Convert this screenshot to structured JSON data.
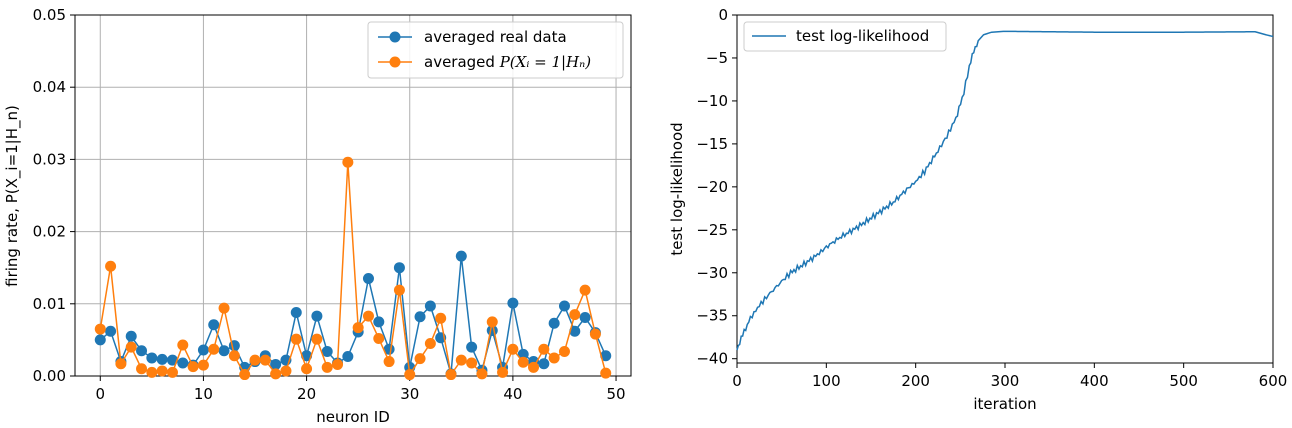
{
  "chart_data": [
    {
      "type": "line",
      "title": "",
      "xlabel": "neuron ID",
      "ylabel": "firing rate, P(X_i=1|H_n)",
      "xlim": [
        -2.45,
        51.45
      ],
      "ylim": [
        0,
        0.05
      ],
      "xticks": [
        "0",
        "10",
        "20",
        "30",
        "40",
        "50"
      ],
      "yticks": [
        "0.00",
        "0.01",
        "0.02",
        "0.03",
        "0.04",
        "0.05"
      ],
      "grid": true,
      "legend_position": "top-right",
      "x": [
        0,
        1,
        2,
        3,
        4,
        5,
        6,
        7,
        8,
        9,
        10,
        11,
        12,
        13,
        14,
        15,
        16,
        17,
        18,
        19,
        20,
        21,
        22,
        23,
        24,
        25,
        26,
        27,
        28,
        29,
        30,
        31,
        32,
        33,
        34,
        35,
        36,
        37,
        38,
        39,
        40,
        41,
        42,
        43,
        44,
        45,
        46,
        47,
        48,
        49
      ],
      "series": [
        {
          "name": "averaged real data",
          "color": "#1f77b4",
          "values": [
            0.005,
            0.0062,
            0.002,
            0.0055,
            0.0035,
            0.0025,
            0.0023,
            0.0022,
            0.0018,
            0.0015,
            0.0036,
            0.0071,
            0.0035,
            0.0042,
            0.0012,
            0.002,
            0.0028,
            0.0016,
            0.0022,
            0.0088,
            0.0028,
            0.0083,
            0.0034,
            0.0018,
            0.0027,
            0.0061,
            0.0135,
            0.0075,
            0.0037,
            0.015,
            0.0012,
            0.0082,
            0.0097,
            0.0053,
            0.0003,
            0.0166,
            0.004,
            0.0008,
            0.0063,
            0.0012,
            0.0101,
            0.003,
            0.002,
            0.0017,
            0.0073,
            0.0097,
            0.0062,
            0.0081,
            0.006,
            0.0028
          ]
        },
        {
          "name": "averaged ",
          "name_math": "P(Xᵢ = 1|Hₙ)",
          "color": "#ff7f0e",
          "values": [
            0.0065,
            0.0152,
            0.0017,
            0.004,
            0.001,
            0.0005,
            0.0007,
            0.0005,
            0.0043,
            0.0013,
            0.0015,
            0.0037,
            0.0094,
            0.0028,
            0.0002,
            0.0022,
            0.0022,
            0.0003,
            0.0007,
            0.0051,
            0.001,
            0.0051,
            0.0012,
            0.0016,
            0.0296,
            0.0067,
            0.0083,
            0.0052,
            0.002,
            0.0119,
            0.0002,
            0.0024,
            0.0045,
            0.008,
            0.0002,
            0.0022,
            0.0018,
            0.0003,
            0.0075,
            0.0005,
            0.0037,
            0.0019,
            0.0012,
            0.0037,
            0.0025,
            0.0034,
            0.0085,
            0.0119,
            0.0058,
            0.0004
          ]
        }
      ]
    },
    {
      "type": "line",
      "title": "",
      "xlabel": "iteration",
      "ylabel": "test log-likelihood",
      "xlim": [
        0,
        600
      ],
      "ylim": [
        -40.5,
        0
      ],
      "xticks": [
        "0",
        "100",
        "200",
        "300",
        "400",
        "500",
        "600"
      ],
      "yticks": [
        "0",
        "−5",
        "−10",
        "−15",
        "−20",
        "−25",
        "−30",
        "−35",
        "−40"
      ],
      "grid": false,
      "legend_position": "top-left",
      "series": [
        {
          "name": "test log-likelihood",
          "color": "#1f77b4",
          "points": [
            [
              0,
              -39
            ],
            [
              3,
              -38.2
            ],
            [
              8,
              -36.8
            ],
            [
              15,
              -35.3
            ],
            [
              25,
              -33.8
            ],
            [
              35,
              -32.6
            ],
            [
              50,
              -31.0
            ],
            [
              60,
              -30.0
            ],
            [
              75,
              -29.0
            ],
            [
              90,
              -27.9
            ],
            [
              100,
              -27.0
            ],
            [
              115,
              -25.9
            ],
            [
              130,
              -25.0
            ],
            [
              145,
              -24.0
            ],
            [
              160,
              -22.9
            ],
            [
              175,
              -21.8
            ],
            [
              190,
              -20.3
            ],
            [
              200,
              -19.4
            ],
            [
              210,
              -18.2
            ],
            [
              225,
              -15.8
            ],
            [
              235,
              -14.1
            ],
            [
              245,
              -12.0
            ],
            [
              252,
              -9.8
            ],
            [
              256,
              -8.0
            ],
            [
              260,
              -6.0
            ],
            [
              265,
              -4.3
            ],
            [
              270,
              -3.0
            ],
            [
              276,
              -2.3
            ],
            [
              285,
              -2.0
            ],
            [
              300,
              -1.9
            ],
            [
              400,
              -2.0
            ],
            [
              500,
              -2.0
            ],
            [
              580,
              -1.95
            ],
            [
              592,
              -2.3
            ],
            [
              600,
              -2.5
            ]
          ]
        }
      ]
    }
  ]
}
